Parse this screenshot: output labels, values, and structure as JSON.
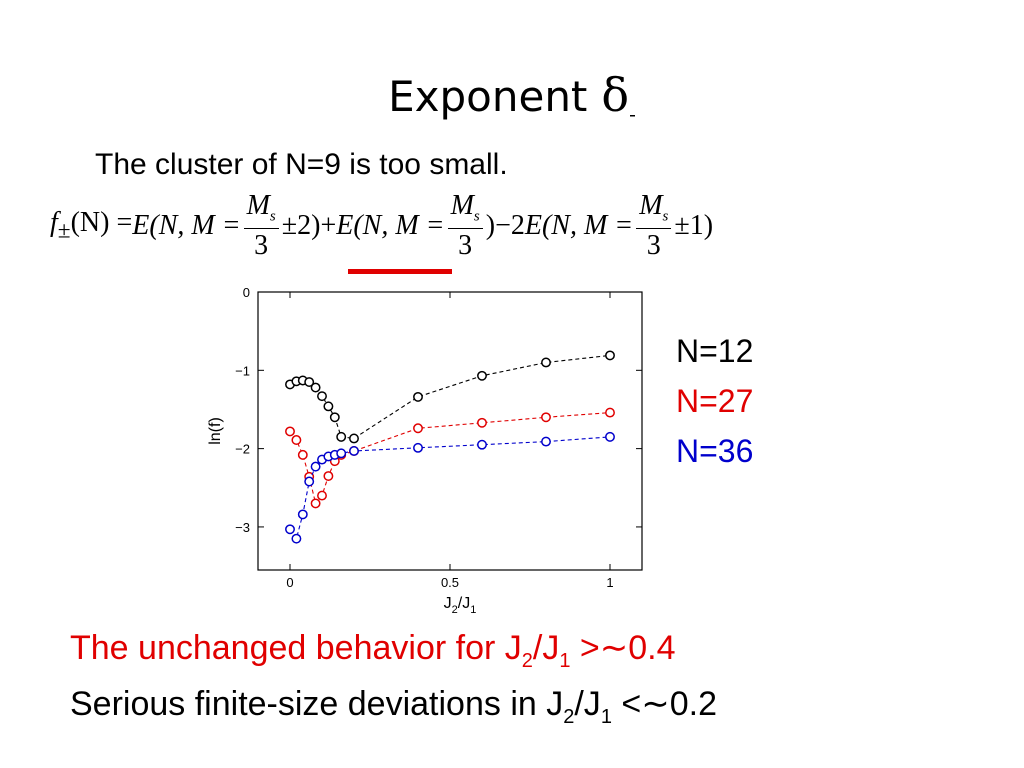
{
  "slide": {
    "title": "Exponent",
    "title_symbol": "δ",
    "title_symbol_sub": "-",
    "subtitle": "The cluster of N=9 is too small."
  },
  "formula": {
    "lhs": "f",
    "lhs_sub": "±",
    "lhs_arg": "(N) = ",
    "term1_prefix": "E(N, M = ",
    "frac_num": "M",
    "frac_num_sub": "s",
    "frac_den": "3",
    "term1_suffix": "±2)+",
    "term2_prefix": "E(N, M = ",
    "term2_suffix": ")−2",
    "term3_prefix": "E(N, M = ",
    "term3_suffix": "±1)",
    "highlight_color": "#e00000"
  },
  "legend": [
    {
      "label": "N=12",
      "color": "#000000"
    },
    {
      "label": "N=27",
      "color": "#e00000"
    },
    {
      "label": "N=36",
      "color": "#0000cc"
    }
  ],
  "notes": {
    "line1_a": "The unchanged behavior for J",
    "line1_sub1": "2",
    "line1_b": "/J",
    "line1_sub2": "1",
    "line1_c": " >∼0.4",
    "line2_a": "Serious finite-size deviations in J",
    "line2_sub1": "2",
    "line2_b": "/J",
    "line2_sub2": "1",
    "line2_c": " <∼0.2",
    "line1_color": "#e00000"
  },
  "chart_data": {
    "type": "line",
    "xlabel": "J",
    "xlabel_sub1": "2",
    "xlabel_mid": "/J",
    "xlabel_sub2": "1",
    "ylabel": "ln(f)",
    "xlim": [
      -0.1,
      1.1
    ],
    "ylim": [
      -3.55,
      0
    ],
    "xticks": [
      0,
      0.5,
      1
    ],
    "xtick_labels": [
      "0",
      "0.5",
      "1"
    ],
    "yticks": [
      0,
      -1,
      -2,
      -3
    ],
    "ytick_labels": [
      "0",
      "−1",
      "−2",
      "−3"
    ],
    "grid": false,
    "line_style": "dashed",
    "marker": "open-circle",
    "series": [
      {
        "name": "N=12",
        "color": "#000000",
        "x": [
          0,
          0.02,
          0.04,
          0.06,
          0.08,
          0.1,
          0.12,
          0.14,
          0.16,
          0.2,
          0.4,
          0.6,
          0.8,
          1.0
        ],
        "y": [
          -1.18,
          -1.14,
          -1.13,
          -1.15,
          -1.22,
          -1.33,
          -1.46,
          -1.6,
          -1.85,
          -1.87,
          -1.34,
          -1.07,
          -0.9,
          -0.81
        ]
      },
      {
        "name": "N=27",
        "color": "#e00000",
        "x": [
          0,
          0.02,
          0.04,
          0.06,
          0.08,
          0.1,
          0.12,
          0.14,
          0.16,
          0.2,
          0.4,
          0.6,
          0.8,
          1.0
        ],
        "y": [
          -1.78,
          -1.89,
          -2.08,
          -2.36,
          -2.7,
          -2.6,
          -2.35,
          -2.16,
          -2.08,
          -2.03,
          -1.74,
          -1.67,
          -1.6,
          -1.54
        ]
      },
      {
        "name": "N=36",
        "color": "#0000cc",
        "x": [
          0,
          0.02,
          0.04,
          0.06,
          0.08,
          0.1,
          0.12,
          0.14,
          0.16,
          0.2,
          0.4,
          0.6,
          0.8,
          1.0
        ],
        "y": [
          -3.03,
          -3.15,
          -2.84,
          -2.42,
          -2.23,
          -2.14,
          -2.1,
          -2.08,
          -2.06,
          -2.03,
          -1.99,
          -1.95,
          -1.91,
          -1.85
        ]
      }
    ]
  }
}
